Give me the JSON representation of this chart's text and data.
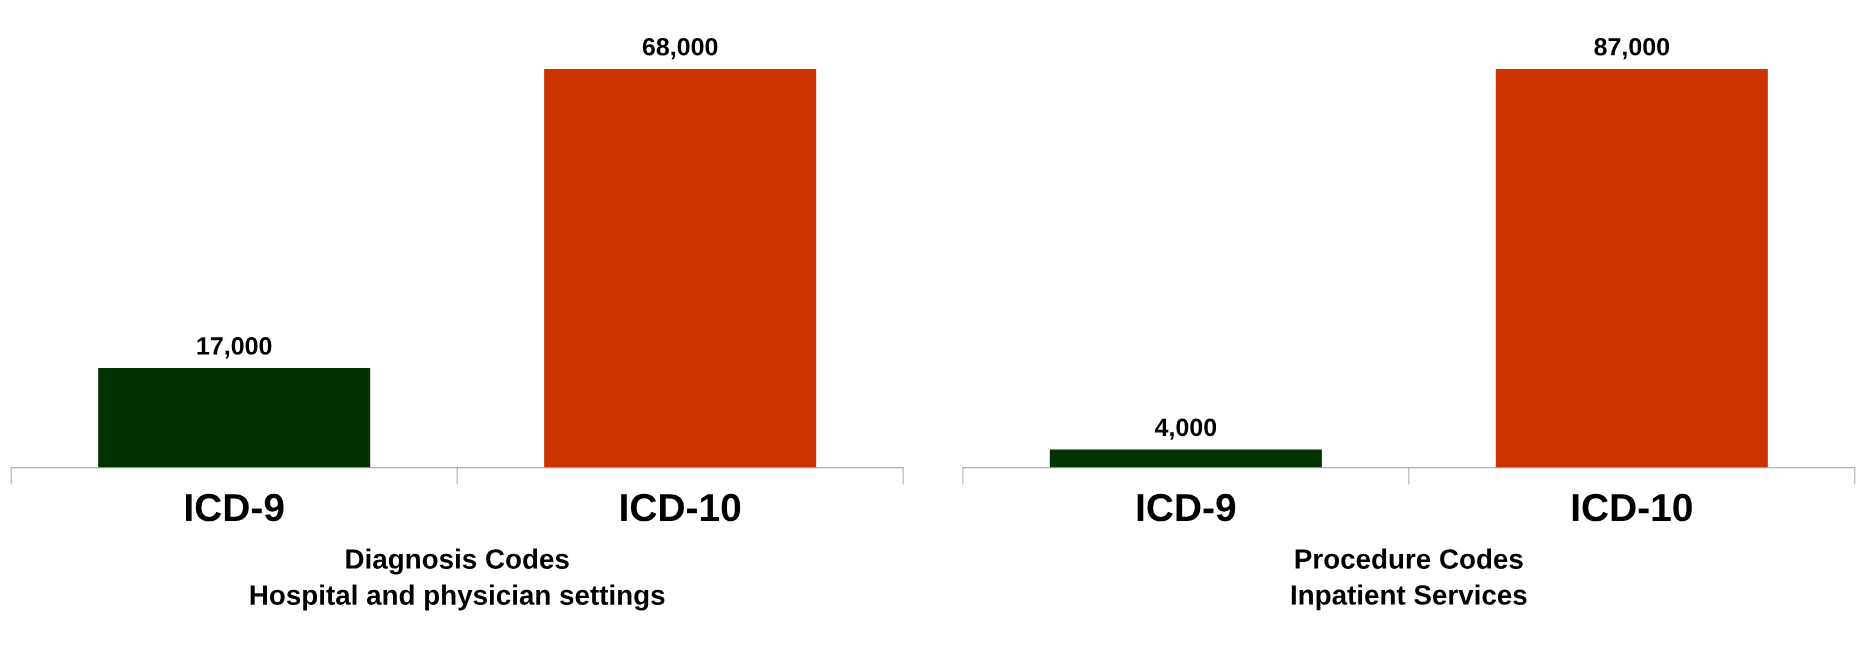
{
  "chart_data": [
    {
      "type": "bar",
      "categories": [
        "ICD-9",
        "ICD-10"
      ],
      "values": [
        17000,
        68000
      ],
      "value_labels": [
        "17,000",
        "68,000"
      ],
      "colors": [
        "#003300",
        "#cc3300"
      ],
      "xlabel": "Diagnosis Codes\nHospital and physician settings",
      "grid": false,
      "legend": false,
      "tick_labels": "x"
    },
    {
      "type": "bar",
      "categories": [
        "ICD-9",
        "ICD-10"
      ],
      "values": [
        4000,
        87000
      ],
      "value_labels": [
        "4,000",
        "87,000"
      ],
      "colors": [
        "#003300",
        "#cc3300"
      ],
      "xlabel": "Procedure Codes\nInpatient Services",
      "grid": false,
      "legend": false,
      "tick_labels": "x"
    }
  ]
}
